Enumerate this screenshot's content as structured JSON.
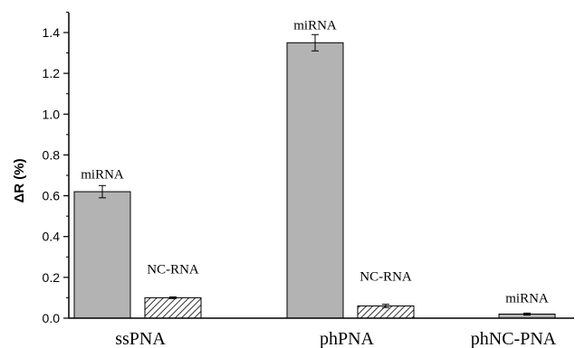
{
  "chart_data": {
    "type": "bar",
    "ylabel": "ΔR (%)",
    "ylim": [
      0,
      1.5
    ],
    "yticks": [
      "0.0",
      "0.2",
      "0.4",
      "0.6",
      "0.8",
      "1.0",
      "1.2",
      "1.4"
    ],
    "categories": [
      "ssPNA",
      "phPNA",
      "phNC-PNA"
    ],
    "bars": [
      {
        "category": "ssPNA",
        "label": "miRNA",
        "value": 0.62,
        "error": 0.03,
        "pattern": "solid"
      },
      {
        "category": "ssPNA",
        "label": "NC-RNA",
        "value": 0.1,
        "error": 0.004,
        "pattern": "hatched"
      },
      {
        "category": "phPNA",
        "label": "miRNA",
        "value": 1.35,
        "error": 0.04,
        "pattern": "solid"
      },
      {
        "category": "phPNA",
        "label": "NC-RNA",
        "value": 0.06,
        "error": 0.008,
        "pattern": "hatched"
      },
      {
        "category": "phNC-PNA",
        "label": "miRNA",
        "value": 0.02,
        "error": 0.005,
        "pattern": "solid"
      }
    ],
    "colors": {
      "solid_bar": "#b3b3b3",
      "hatched_bar_lines": "#333333",
      "outline": "#000000"
    }
  }
}
